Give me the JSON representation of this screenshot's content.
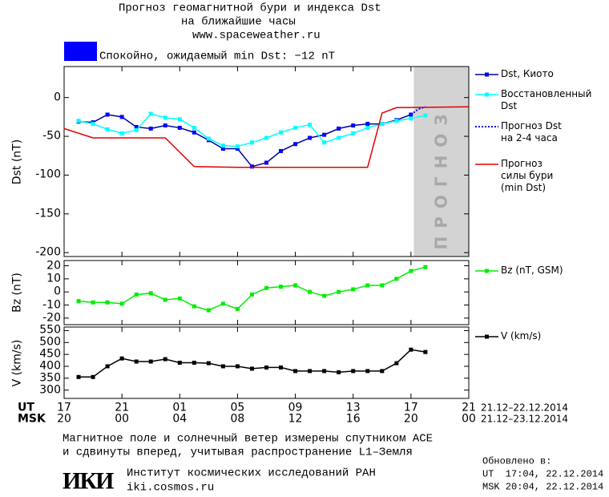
{
  "header": {
    "title_lines": [
      "Прогноз геомагнитной бури и индекса Dst",
      "на ближайшие часы",
      "www.spaceweather.ru"
    ],
    "status": {
      "color": "#0000ff",
      "text": "Спокойно, ожидаемый min Dst: −12 nT"
    }
  },
  "chart_data": [
    {
      "type": "line",
      "ylabel": "Dst (nT)",
      "xlim": [
        0,
        28
      ],
      "ylim": [
        -205,
        40
      ],
      "yticks": [
        0,
        -50,
        -100,
        -150,
        -200
      ],
      "forecast_region": {
        "x": [
          24.2,
          28
        ],
        "color": "#d3d3d3",
        "label": "ПРОГНОЗ"
      },
      "series": [
        {
          "name": "Dst, Киото",
          "color": "#0000ff",
          "line_color": "#0000a0",
          "marker": "square",
          "style": "solid",
          "x": [
            1,
            2,
            3,
            4,
            5,
            6,
            7,
            8,
            9,
            10,
            11,
            12,
            13,
            14,
            15,
            16,
            17,
            18,
            19,
            20,
            21,
            22,
            23,
            24
          ],
          "values": [
            -31,
            -32,
            -22,
            -25,
            -38,
            -40,
            -36,
            -39,
            -45,
            -55,
            -66,
            -66,
            -89,
            -84,
            -69,
            -60,
            -52,
            -48,
            -40,
            -36,
            -34,
            -34,
            -29,
            -22
          ]
        },
        {
          "name": "Восстановленный\nDst",
          "color": "#00ffff",
          "line_color": "#00ffff",
          "marker": "square",
          "style": "solid",
          "x": [
            1,
            2,
            3,
            4,
            5,
            6,
            7,
            8,
            9,
            10,
            11,
            12,
            13,
            14,
            15,
            16,
            17,
            18,
            19,
            20,
            21,
            22,
            23,
            24,
            25
          ],
          "values": [
            -30,
            -34,
            -41,
            -46,
            -42,
            -21,
            -26,
            -28,
            -39,
            -53,
            -62,
            -63,
            -58,
            -52,
            -45,
            -39,
            -35,
            -58,
            -52,
            -46,
            -39,
            -34,
            -30,
            -27,
            -23
          ]
        },
        {
          "name": "Прогноз Dst\nна 2-4 часа",
          "color": "#0000ff",
          "line_color": "#0000ff",
          "marker": "none",
          "style": "dotted",
          "x": [
            24,
            24.5,
            25
          ],
          "values": [
            -22,
            -15,
            -12
          ]
        },
        {
          "name": "Прогноз\nсилы бури\n(min Dst)",
          "color": "#e00000",
          "line_color": "#e00000",
          "marker": "none",
          "style": "solid",
          "x": [
            0,
            2,
            7,
            9,
            12,
            21,
            22,
            23,
            28
          ],
          "values": [
            -40,
            -52,
            -52,
            -89,
            -90,
            -90,
            -20,
            -13,
            -12
          ]
        }
      ]
    },
    {
      "type": "line",
      "ylabel": "Bz (nT)",
      "xlim": [
        0,
        28
      ],
      "ylim": [
        -25,
        24
      ],
      "yticks": [
        20,
        10,
        0,
        -10,
        -20
      ],
      "series": [
        {
          "name": "Bz (nT, GSM)",
          "color": "#00ee00",
          "line_color": "#00ee00",
          "marker": "square",
          "style": "solid",
          "x": [
            1,
            2,
            3,
            4,
            5,
            6,
            7,
            8,
            9,
            10,
            11,
            12,
            13,
            14,
            15,
            16,
            17,
            18,
            19,
            20,
            21,
            22,
            23,
            24,
            25
          ],
          "values": [
            -7,
            -8,
            -8,
            -9,
            -2,
            -1,
            -6,
            -5,
            -11,
            -14,
            -9,
            -13,
            -2,
            3,
            4,
            5,
            0,
            -3,
            0,
            2,
            5,
            5,
            10,
            16,
            19
          ]
        }
      ]
    },
    {
      "type": "line",
      "ylabel": "V (km/s)",
      "xlim": [
        0,
        28
      ],
      "ylim": [
        265,
        565
      ],
      "yticks": [
        300,
        350,
        400,
        450,
        500,
        550
      ],
      "xticks": [
        {
          "value": 0,
          "label": "17"
        },
        {
          "value": 4,
          "label": "21"
        },
        {
          "value": 8,
          "label": "01"
        },
        {
          "value": 12,
          "label": "05"
        },
        {
          "value": 16,
          "label": "09"
        },
        {
          "value": 20,
          "label": "13"
        },
        {
          "value": 24,
          "label": "17"
        },
        {
          "value": 28,
          "label": "21"
        }
      ],
      "xticklabels_msk": [
        "20",
        "00",
        "04",
        "08",
        "12",
        "16",
        "20",
        "00"
      ],
      "xlabel": "UT",
      "xlabel_msk": "MSK",
      "date_range": "21.12–22.12.2014",
      "date_range_msk": "21.12–23.12.2014",
      "series": [
        {
          "name": "V (km/s)",
          "color": "#000000",
          "line_color": "#000000",
          "marker": "square",
          "style": "solid",
          "x": [
            1,
            2,
            3,
            4,
            5,
            6,
            7,
            8,
            9,
            10,
            11,
            12,
            13,
            14,
            15,
            16,
            17,
            18,
            19,
            20,
            21,
            22,
            23,
            24,
            25
          ],
          "values": [
            355,
            355,
            400,
            433,
            420,
            420,
            430,
            415,
            415,
            413,
            400,
            400,
            390,
            395,
            395,
            380,
            380,
            380,
            375,
            380,
            380,
            380,
            413,
            470,
            460
          ]
        }
      ]
    }
  ],
  "footer": {
    "note_lines": [
      "Магнитное поле и солнечный ветер измерены спутником ACE",
      "и сдвинуты вперед, учитывая распространение L1–Земля"
    ],
    "logo": "ИКИ",
    "institute": "Институт космических исследований РАН",
    "site": "iki.cosmos.ru",
    "updated_label": "Обновлено в:",
    "updated_ut": "UT  17:04, 22.12.2014",
    "updated_msk": "MSK 20:04, 22.12.2014"
  }
}
